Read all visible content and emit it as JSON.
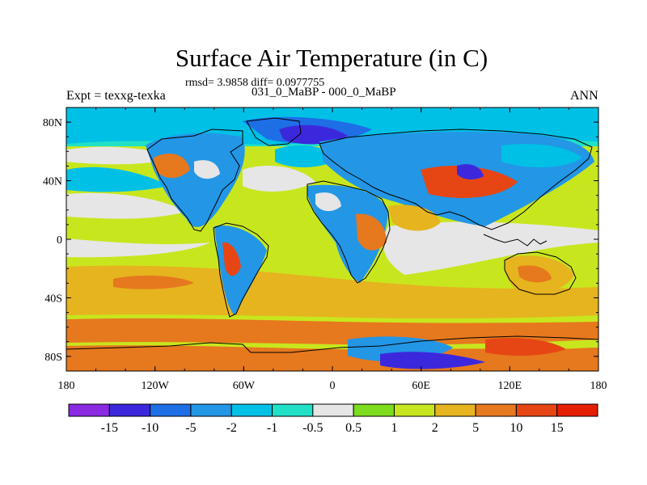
{
  "header": {
    "title": "Surface Air Temperature (in C)",
    "stats": "rmsd= 3.9858 diff= 0.0977755",
    "left_label": "Expt = texxg-texka",
    "center_label": "031_0_MaBP - 000_0_MaBP",
    "right_label": "ANN"
  },
  "map": {
    "projection": "cylindrical-equidistant",
    "lon_range": [
      -180,
      180
    ],
    "lat_range": [
      -90,
      90
    ],
    "x_ticks": [
      {
        "value": -180,
        "label": "180"
      },
      {
        "value": -120,
        "label": "120W"
      },
      {
        "value": -60,
        "label": "60W"
      },
      {
        "value": 0,
        "label": "0"
      },
      {
        "value": 60,
        "label": "60E"
      },
      {
        "value": 120,
        "label": "120E"
      },
      {
        "value": 180,
        "label": "180"
      }
    ],
    "y_ticks": [
      {
        "value": 80,
        "label": "80N"
      },
      {
        "value": 40,
        "label": "40N"
      },
      {
        "value": 0,
        "label": "0"
      },
      {
        "value": -40,
        "label": "40S"
      },
      {
        "value": -80,
        "label": "80S"
      }
    ],
    "coastline_color": "#000000"
  },
  "colorbar": {
    "colors": [
      "#8a2be2",
      "#3c28dc",
      "#1e6ee6",
      "#2396e6",
      "#00c0e6",
      "#20e0c8",
      "#e6e6e6",
      "#7ddc1e",
      "#c8e61e",
      "#e6b41e",
      "#e6781e",
      "#e64614",
      "#e61e00"
    ],
    "labels": [
      "-15",
      "-10",
      "-5",
      "-2",
      "-1",
      "-0.5",
      "0.5",
      "1",
      "2",
      "5",
      "10",
      "15"
    ]
  }
}
